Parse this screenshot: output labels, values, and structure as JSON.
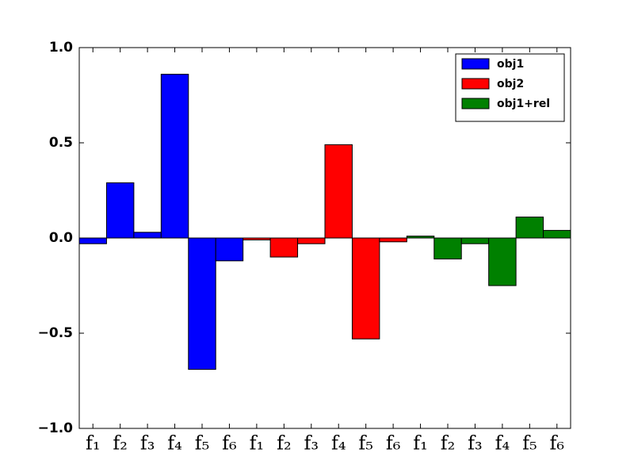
{
  "chart_data": {
    "type": "bar",
    "categories": [
      "f₁",
      "f₂",
      "f₃",
      "f₄",
      "f₅",
      "f₆",
      "f₁",
      "f₂",
      "f₃",
      "f₄",
      "f₅",
      "f₆",
      "f₁",
      "f₂",
      "f₃",
      "f₄",
      "f₅",
      "f₆"
    ],
    "series": [
      {
        "name": "obj1",
        "color": "#0000ff",
        "values": [
          -0.03,
          0.29,
          0.03,
          0.86,
          -0.69,
          -0.12,
          null,
          null,
          null,
          null,
          null,
          null,
          null,
          null,
          null,
          null,
          null,
          null
        ]
      },
      {
        "name": "obj2",
        "color": "#ff0000",
        "values": [
          null,
          null,
          null,
          null,
          null,
          null,
          -0.01,
          -0.1,
          -0.03,
          0.49,
          -0.53,
          -0.02,
          null,
          null,
          null,
          null,
          null,
          null
        ]
      },
      {
        "name": "obj1+rel",
        "color": "#008000",
        "values": [
          null,
          null,
          null,
          null,
          null,
          null,
          null,
          null,
          null,
          null,
          null,
          null,
          0.01,
          -0.11,
          -0.03,
          -0.25,
          0.11,
          0.04
        ]
      }
    ],
    "ylim": [
      -1,
      1
    ],
    "yticks": [
      {
        "value": -1,
        "label": "−1.0"
      },
      {
        "value": -0.5,
        "label": "−0.5"
      },
      {
        "value": 0,
        "label": "0.0"
      },
      0.5,
      {
        "value": 1,
        "label": "1.0"
      }
    ],
    "grid": false,
    "legend": "upper right"
  }
}
